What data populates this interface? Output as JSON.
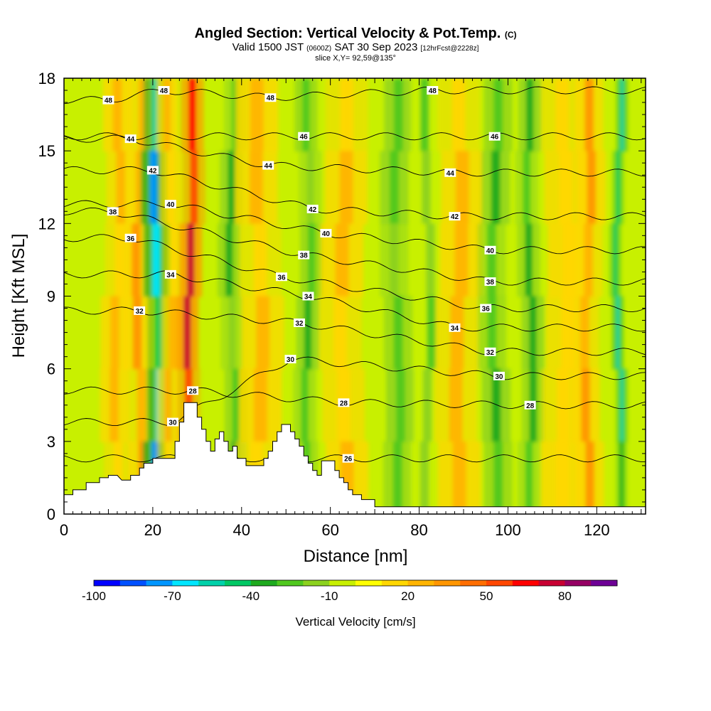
{
  "header": {
    "title": "Angled Section: Vertical Velocity & Pot.Temp.",
    "title_unit": "(C)",
    "valid_prefix": "Valid 1500 JST",
    "valid_utc": "(0600Z)",
    "valid_date": "SAT 30 Sep 2023",
    "forecast": "[12hrFcst@2228z]",
    "slice": "slice X,Y= 92,59@135°"
  },
  "chart_data": {
    "type": "heatmap",
    "xlabel": "Distance [nm]",
    "ylabel": "Height [Kft MSL]",
    "xlim": [
      0,
      131
    ],
    "ylim": [
      0,
      18
    ],
    "x_ticks": [
      0,
      20,
      40,
      60,
      80,
      100,
      120
    ],
    "y_ticks": [
      0,
      3,
      6,
      9,
      12,
      15,
      18
    ],
    "colorbar": {
      "label": "Vertical Velocity [cm/s]",
      "min": -100,
      "max": 100,
      "step": 10,
      "tick_labels": [
        -100,
        -70,
        -40,
        -10,
        20,
        50,
        80
      ],
      "colors": [
        "#0000ff",
        "#0050ff",
        "#0096ff",
        "#00e6ff",
        "#00d2aa",
        "#00c864",
        "#1eaa1e",
        "#50c81e",
        "#8cd21e",
        "#c8f000",
        "#ffff00",
        "#ffd700",
        "#ffb400",
        "#ff9600",
        "#ff6e00",
        "#ff4600",
        "#ff0000",
        "#c80032",
        "#960064",
        "#6e0096"
      ]
    },
    "velocity_columns": [
      {
        "x": 12,
        "w": 2.0,
        "v": 28
      },
      {
        "x": 17,
        "w": 2.0,
        "v": 35
      },
      {
        "x": 21,
        "w": 1.8,
        "v": -72
      },
      {
        "x": 24,
        "w": 1.5,
        "v": 22
      },
      {
        "x": 28.5,
        "w": 1.6,
        "v": 82
      },
      {
        "x": 38,
        "w": 1.6,
        "v": -32
      },
      {
        "x": 44,
        "w": 3.0,
        "v": 25
      },
      {
        "x": 55,
        "w": 1.6,
        "v": -32
      },
      {
        "x": 63,
        "w": 3.0,
        "v": 22
      },
      {
        "x": 75,
        "w": 2.0,
        "v": -28
      },
      {
        "x": 82,
        "w": 2.0,
        "v": -22
      },
      {
        "x": 89,
        "w": 3.0,
        "v": 28
      },
      {
        "x": 97,
        "w": 2.0,
        "v": -32
      },
      {
        "x": 105,
        "w": 1.6,
        "v": -38
      },
      {
        "x": 113,
        "w": 3.0,
        "v": 18
      },
      {
        "x": 118,
        "w": 2.0,
        "v": 38
      },
      {
        "x": 125,
        "w": 0.8,
        "v": -58
      }
    ],
    "contour_labels": [
      {
        "text": "48",
        "x": 22.5,
        "y": 17.5
      },
      {
        "text": "48",
        "x": 10,
        "y": 17.1
      },
      {
        "text": "48",
        "x": 46.5,
        "y": 17.2
      },
      {
        "text": "48",
        "x": 83,
        "y": 17.5
      },
      {
        "text": "46",
        "x": 54,
        "y": 15.6
      },
      {
        "text": "46",
        "x": 97,
        "y": 15.6
      },
      {
        "text": "44",
        "x": 15,
        "y": 15.5
      },
      {
        "text": "44",
        "x": 46,
        "y": 14.4
      },
      {
        "text": "44",
        "x": 87,
        "y": 14.1
      },
      {
        "text": "42",
        "x": 20,
        "y": 14.2
      },
      {
        "text": "42",
        "x": 56,
        "y": 12.6
      },
      {
        "text": "42",
        "x": 88,
        "y": 12.3
      },
      {
        "text": "40",
        "x": 24,
        "y": 12.8
      },
      {
        "text": "40",
        "x": 59,
        "y": 11.6
      },
      {
        "text": "40",
        "x": 96,
        "y": 10.9
      },
      {
        "text": "38",
        "x": 11,
        "y": 12.5
      },
      {
        "text": "38",
        "x": 54,
        "y": 10.7
      },
      {
        "text": "38",
        "x": 96,
        "y": 9.6
      },
      {
        "text": "36",
        "x": 15,
        "y": 11.4
      },
      {
        "text": "36",
        "x": 49,
        "y": 9.8
      },
      {
        "text": "36",
        "x": 95,
        "y": 8.5
      },
      {
        "text": "34",
        "x": 24,
        "y": 9.9
      },
      {
        "text": "34",
        "x": 55,
        "y": 9.0
      },
      {
        "text": "34",
        "x": 88,
        "y": 7.7
      },
      {
        "text": "32",
        "x": 17,
        "y": 8.4
      },
      {
        "text": "32",
        "x": 53,
        "y": 7.9
      },
      {
        "text": "32",
        "x": 96,
        "y": 6.7
      },
      {
        "text": "30",
        "x": 51,
        "y": 6.4
      },
      {
        "text": "30",
        "x": 98,
        "y": 5.7
      },
      {
        "text": "30",
        "x": 24.5,
        "y": 3.8
      },
      {
        "text": "28",
        "x": 29,
        "y": 5.1
      },
      {
        "text": "28",
        "x": 63,
        "y": 4.6
      },
      {
        "text": "28",
        "x": 105,
        "y": 4.5
      },
      {
        "text": "26",
        "x": 64,
        "y": 2.3
      }
    ],
    "terrain": [
      [
        0,
        0
      ],
      [
        0,
        0.8
      ],
      [
        2,
        0.8
      ],
      [
        2,
        1.0
      ],
      [
        5,
        1.0
      ],
      [
        5,
        1.3
      ],
      [
        8,
        1.3
      ],
      [
        8,
        1.5
      ],
      [
        10,
        1.5
      ],
      [
        10,
        1.6
      ],
      [
        12,
        1.6
      ],
      [
        13,
        1.4
      ],
      [
        15,
        1.4
      ],
      [
        15,
        1.6
      ],
      [
        17,
        1.6
      ],
      [
        17,
        1.9
      ],
      [
        18,
        1.9
      ],
      [
        18,
        2.1
      ],
      [
        20,
        2.1
      ],
      [
        20,
        2.3
      ],
      [
        25,
        2.3
      ],
      [
        25,
        3.0
      ],
      [
        26,
        3.0
      ],
      [
        26,
        3.8
      ],
      [
        27,
        3.8
      ],
      [
        27,
        4.6
      ],
      [
        30,
        4.6
      ],
      [
        30,
        4.0
      ],
      [
        31,
        4.0
      ],
      [
        31,
        3.5
      ],
      [
        32,
        3.5
      ],
      [
        32,
        3.0
      ],
      [
        33,
        3.0
      ],
      [
        33,
        2.6
      ],
      [
        34,
        2.6
      ],
      [
        34,
        3.1
      ],
      [
        35,
        3.1
      ],
      [
        35,
        3.4
      ],
      [
        36,
        3.4
      ],
      [
        36,
        3.0
      ],
      [
        37,
        3.0
      ],
      [
        37,
        2.6
      ],
      [
        38,
        2.6
      ],
      [
        38,
        2.8
      ],
      [
        39,
        2.8
      ],
      [
        39,
        2.3
      ],
      [
        41,
        2.3
      ],
      [
        41,
        2.0
      ],
      [
        45,
        2.0
      ],
      [
        45,
        2.3
      ],
      [
        46,
        2.3
      ],
      [
        46,
        2.6
      ],
      [
        47,
        2.6
      ],
      [
        47,
        3.0
      ],
      [
        48,
        3.0
      ],
      [
        48,
        3.4
      ],
      [
        49,
        3.4
      ],
      [
        49,
        3.7
      ],
      [
        51,
        3.7
      ],
      [
        51,
        3.4
      ],
      [
        52,
        3.4
      ],
      [
        52,
        3.1
      ],
      [
        53,
        3.1
      ],
      [
        53,
        2.8
      ],
      [
        54,
        2.8
      ],
      [
        54,
        2.4
      ],
      [
        55,
        2.4
      ],
      [
        55,
        2.1
      ],
      [
        56,
        2.1
      ],
      [
        56,
        1.8
      ],
      [
        57,
        1.8
      ],
      [
        57,
        1.6
      ],
      [
        58,
        1.6
      ],
      [
        58,
        2.2
      ],
      [
        61,
        2.2
      ],
      [
        61,
        1.8
      ],
      [
        62,
        1.8
      ],
      [
        62,
        1.5
      ],
      [
        63,
        1.5
      ],
      [
        63,
        1.3
      ],
      [
        64,
        1.3
      ],
      [
        64,
        1.0
      ],
      [
        65,
        1.0
      ],
      [
        65,
        0.8
      ],
      [
        67,
        0.8
      ],
      [
        67,
        0.6
      ],
      [
        70,
        0.6
      ],
      [
        70,
        0.3
      ],
      [
        131,
        0.3
      ],
      [
        131,
        0
      ]
    ]
  }
}
